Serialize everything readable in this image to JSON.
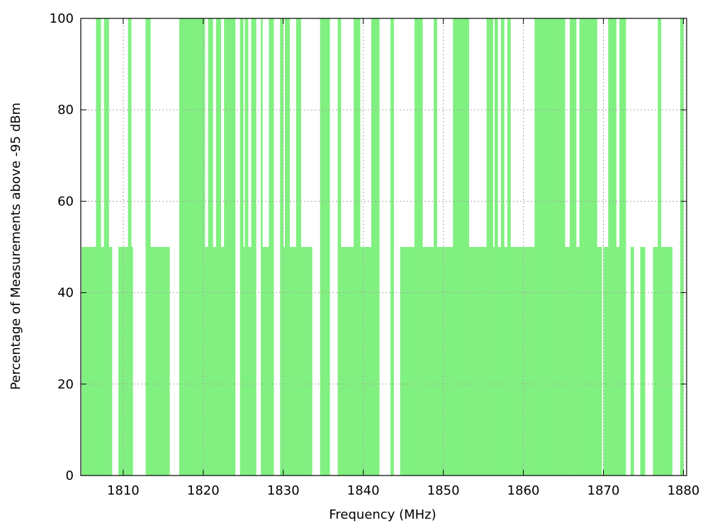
{
  "chart_data": {
    "type": "bar",
    "title": "",
    "xlabel": "Frequency (MHz)",
    "ylabel": "Percentage of Measurements above -95 dBm",
    "xlim": [
      1804.7,
      1880.4
    ],
    "ylim": [
      0,
      100
    ],
    "xticks": [
      1810,
      1820,
      1830,
      1840,
      1850,
      1860,
      1870,
      1880
    ],
    "yticks": [
      0,
      20,
      40,
      60,
      80,
      100
    ],
    "grid": true,
    "legend": "none",
    "bar_width_mhz": 0.2,
    "bar_color": "#80f080",
    "series": [
      {
        "values_at": [
          [
            1804.9,
            50
          ],
          [
            1805.1,
            50
          ],
          [
            1805.3,
            50
          ],
          [
            1805.5,
            50
          ],
          [
            1805.7,
            50
          ],
          [
            1805.9,
            50
          ],
          [
            1806.1,
            50
          ],
          [
            1806.3,
            50
          ],
          [
            1806.5,
            50
          ],
          [
            1806.7,
            100
          ],
          [
            1806.9,
            100
          ],
          [
            1807.1,
            100
          ],
          [
            1807.3,
            50
          ],
          [
            1807.5,
            50
          ],
          [
            1807.7,
            100
          ],
          [
            1807.9,
            100
          ],
          [
            1808.1,
            100
          ],
          [
            1808.3,
            50
          ],
          [
            1808.5,
            50
          ],
          [
            1809.5,
            50
          ],
          [
            1809.7,
            50
          ],
          [
            1809.9,
            50
          ],
          [
            1810.1,
            50
          ],
          [
            1810.3,
            50
          ],
          [
            1810.5,
            50
          ],
          [
            1810.7,
            100
          ],
          [
            1810.9,
            100
          ],
          [
            1811.1,
            50
          ],
          [
            1812.9,
            100
          ],
          [
            1813.1,
            100
          ],
          [
            1813.3,
            100
          ],
          [
            1813.5,
            50
          ],
          [
            1813.7,
            50
          ],
          [
            1813.9,
            50
          ],
          [
            1814.1,
            50
          ],
          [
            1814.3,
            50
          ],
          [
            1814.5,
            50
          ],
          [
            1814.7,
            50
          ],
          [
            1814.9,
            50
          ],
          [
            1815.1,
            50
          ],
          [
            1815.3,
            50
          ],
          [
            1815.5,
            50
          ],
          [
            1815.7,
            50
          ],
          [
            1817.1,
            100
          ],
          [
            1817.3,
            100
          ],
          [
            1817.5,
            100
          ],
          [
            1817.7,
            100
          ],
          [
            1817.9,
            100
          ],
          [
            1818.1,
            100
          ],
          [
            1818.3,
            100
          ],
          [
            1818.5,
            100
          ],
          [
            1818.7,
            100
          ],
          [
            1818.9,
            100
          ],
          [
            1819.1,
            100
          ],
          [
            1819.3,
            100
          ],
          [
            1819.5,
            100
          ],
          [
            1819.7,
            100
          ],
          [
            1819.9,
            100
          ],
          [
            1820.1,
            100
          ],
          [
            1820.3,
            50
          ],
          [
            1820.5,
            50
          ],
          [
            1820.7,
            100
          ],
          [
            1820.9,
            100
          ],
          [
            1821.1,
            100
          ],
          [
            1821.3,
            50
          ],
          [
            1821.5,
            50
          ],
          [
            1821.7,
            100
          ],
          [
            1821.9,
            100
          ],
          [
            1822.1,
            100
          ],
          [
            1822.3,
            50
          ],
          [
            1822.5,
            50
          ],
          [
            1822.7,
            100
          ],
          [
            1822.9,
            100
          ],
          [
            1823.1,
            100
          ],
          [
            1823.3,
            100
          ],
          [
            1823.5,
            100
          ],
          [
            1823.7,
            100
          ],
          [
            1823.9,
            100
          ],
          [
            1824.7,
            100
          ],
          [
            1824.9,
            100
          ],
          [
            1825.1,
            50
          ],
          [
            1825.3,
            100
          ],
          [
            1825.5,
            100
          ],
          [
            1825.7,
            50
          ],
          [
            1825.9,
            50
          ],
          [
            1826.1,
            100
          ],
          [
            1826.3,
            100
          ],
          [
            1826.5,
            100
          ],
          [
            1827.3,
            100
          ],
          [
            1827.5,
            50
          ],
          [
            1827.7,
            50
          ],
          [
            1827.9,
            50
          ],
          [
            1828.1,
            50
          ],
          [
            1828.3,
            100
          ],
          [
            1828.5,
            100
          ],
          [
            1828.7,
            100
          ],
          [
            1829.7,
            100
          ],
          [
            1829.9,
            100
          ],
          [
            1830.1,
            50
          ],
          [
            1830.3,
            100
          ],
          [
            1830.5,
            100
          ],
          [
            1830.7,
            100
          ],
          [
            1830.9,
            50
          ],
          [
            1831.1,
            50
          ],
          [
            1831.3,
            50
          ],
          [
            1831.5,
            50
          ],
          [
            1831.7,
            100
          ],
          [
            1831.9,
            100
          ],
          [
            1832.1,
            100
          ],
          [
            1832.3,
            50
          ],
          [
            1832.5,
            50
          ],
          [
            1832.7,
            50
          ],
          [
            1832.9,
            50
          ],
          [
            1833.1,
            50
          ],
          [
            1833.3,
            50
          ],
          [
            1833.5,
            50
          ],
          [
            1834.7,
            100
          ],
          [
            1834.9,
            100
          ],
          [
            1835.1,
            100
          ],
          [
            1835.3,
            100
          ],
          [
            1835.5,
            100
          ],
          [
            1835.7,
            100
          ],
          [
            1836.9,
            100
          ],
          [
            1837.1,
            100
          ],
          [
            1837.3,
            50
          ],
          [
            1837.5,
            50
          ],
          [
            1837.7,
            50
          ],
          [
            1837.9,
            50
          ],
          [
            1838.1,
            50
          ],
          [
            1838.3,
            50
          ],
          [
            1838.5,
            50
          ],
          [
            1838.7,
            50
          ],
          [
            1838.9,
            100
          ],
          [
            1839.1,
            100
          ],
          [
            1839.3,
            100
          ],
          [
            1839.5,
            100
          ],
          [
            1839.7,
            50
          ],
          [
            1839.9,
            50
          ],
          [
            1840.1,
            50
          ],
          [
            1840.3,
            50
          ],
          [
            1840.5,
            50
          ],
          [
            1840.7,
            50
          ],
          [
            1840.9,
            50
          ],
          [
            1841.1,
            100
          ],
          [
            1841.3,
            100
          ],
          [
            1841.5,
            100
          ],
          [
            1841.7,
            100
          ],
          [
            1841.9,
            100
          ],
          [
            1843.5,
            100
          ],
          [
            1843.7,
            100
          ],
          [
            1844.7,
            50
          ],
          [
            1844.9,
            50
          ],
          [
            1845.1,
            50
          ],
          [
            1845.3,
            50
          ],
          [
            1845.5,
            50
          ],
          [
            1845.7,
            50
          ],
          [
            1845.9,
            50
          ],
          [
            1846.1,
            50
          ],
          [
            1846.3,
            50
          ],
          [
            1846.5,
            100
          ],
          [
            1846.7,
            100
          ],
          [
            1846.9,
            100
          ],
          [
            1847.1,
            100
          ],
          [
            1847.3,
            100
          ],
          [
            1847.5,
            50
          ],
          [
            1847.7,
            50
          ],
          [
            1847.9,
            50
          ],
          [
            1848.1,
            50
          ],
          [
            1848.3,
            50
          ],
          [
            1848.5,
            50
          ],
          [
            1848.7,
            50
          ],
          [
            1848.9,
            100
          ],
          [
            1849.1,
            100
          ],
          [
            1849.3,
            50
          ],
          [
            1849.5,
            50
          ],
          [
            1849.7,
            50
          ],
          [
            1849.9,
            50
          ],
          [
            1850.1,
            50
          ],
          [
            1850.3,
            50
          ],
          [
            1850.5,
            50
          ],
          [
            1850.7,
            50
          ],
          [
            1850.9,
            50
          ],
          [
            1851.1,
            50
          ],
          [
            1851.3,
            100
          ],
          [
            1851.5,
            100
          ],
          [
            1851.7,
            100
          ],
          [
            1851.9,
            100
          ],
          [
            1852.1,
            100
          ],
          [
            1852.3,
            100
          ],
          [
            1852.5,
            100
          ],
          [
            1852.7,
            100
          ],
          [
            1852.9,
            100
          ],
          [
            1853.1,
            100
          ],
          [
            1853.3,
            50
          ],
          [
            1853.5,
            50
          ],
          [
            1853.7,
            50
          ],
          [
            1853.9,
            50
          ],
          [
            1854.1,
            50
          ],
          [
            1854.3,
            50
          ],
          [
            1854.5,
            50
          ],
          [
            1854.7,
            50
          ],
          [
            1854.9,
            50
          ],
          [
            1855.1,
            50
          ],
          [
            1855.3,
            50
          ],
          [
            1855.5,
            100
          ],
          [
            1855.7,
            100
          ],
          [
            1855.9,
            100
          ],
          [
            1856.1,
            100
          ],
          [
            1856.3,
            50
          ],
          [
            1856.5,
            100
          ],
          [
            1856.7,
            100
          ],
          [
            1856.9,
            50
          ],
          [
            1857.1,
            50
          ],
          [
            1857.3,
            100
          ],
          [
            1857.5,
            100
          ],
          [
            1857.7,
            50
          ],
          [
            1857.9,
            50
          ],
          [
            1858.1,
            100
          ],
          [
            1858.3,
            100
          ],
          [
            1858.5,
            50
          ],
          [
            1858.7,
            50
          ],
          [
            1858.9,
            50
          ],
          [
            1859.1,
            50
          ],
          [
            1859.3,
            50
          ],
          [
            1859.5,
            50
          ],
          [
            1859.7,
            50
          ],
          [
            1859.9,
            50
          ],
          [
            1860.1,
            50
          ],
          [
            1860.3,
            50
          ],
          [
            1860.5,
            50
          ],
          [
            1860.7,
            50
          ],
          [
            1860.9,
            50
          ],
          [
            1861.1,
            50
          ],
          [
            1861.3,
            50
          ],
          [
            1861.5,
            100
          ],
          [
            1861.7,
            100
          ],
          [
            1861.9,
            100
          ],
          [
            1862.1,
            100
          ],
          [
            1862.3,
            100
          ],
          [
            1862.5,
            100
          ],
          [
            1862.7,
            100
          ],
          [
            1862.9,
            100
          ],
          [
            1863.1,
            100
          ],
          [
            1863.3,
            100
          ],
          [
            1863.5,
            100
          ],
          [
            1863.7,
            100
          ],
          [
            1863.9,
            100
          ],
          [
            1864.1,
            100
          ],
          [
            1864.3,
            100
          ],
          [
            1864.5,
            100
          ],
          [
            1864.7,
            100
          ],
          [
            1864.9,
            100
          ],
          [
            1865.1,
            100
          ],
          [
            1865.3,
            50
          ],
          [
            1865.5,
            50
          ],
          [
            1865.7,
            50
          ],
          [
            1865.9,
            100
          ],
          [
            1866.1,
            100
          ],
          [
            1866.3,
            100
          ],
          [
            1866.5,
            100
          ],
          [
            1866.7,
            50
          ],
          [
            1866.9,
            50
          ],
          [
            1867.1,
            100
          ],
          [
            1867.3,
            100
          ],
          [
            1867.5,
            100
          ],
          [
            1867.7,
            100
          ],
          [
            1867.9,
            100
          ],
          [
            1868.1,
            100
          ],
          [
            1868.3,
            100
          ],
          [
            1868.5,
            100
          ],
          [
            1868.7,
            100
          ],
          [
            1868.9,
            100
          ],
          [
            1869.1,
            100
          ],
          [
            1869.3,
            50
          ],
          [
            1869.5,
            50
          ],
          [
            1869.7,
            50
          ],
          [
            1870.1,
            50
          ],
          [
            1870.3,
            50
          ],
          [
            1870.5,
            50
          ],
          [
            1870.7,
            100
          ],
          [
            1870.9,
            100
          ],
          [
            1871.1,
            100
          ],
          [
            1871.3,
            100
          ],
          [
            1871.5,
            100
          ],
          [
            1871.7,
            50
          ],
          [
            1871.9,
            50
          ],
          [
            1872.1,
            100
          ],
          [
            1872.3,
            100
          ],
          [
            1872.5,
            100
          ],
          [
            1872.7,
            100
          ],
          [
            1873.5,
            50
          ],
          [
            1873.7,
            50
          ],
          [
            1874.7,
            50
          ],
          [
            1874.9,
            50
          ],
          [
            1875.1,
            50
          ],
          [
            1876.3,
            50
          ],
          [
            1876.5,
            50
          ],
          [
            1876.7,
            50
          ],
          [
            1876.9,
            100
          ],
          [
            1877.1,
            100
          ],
          [
            1877.3,
            50
          ],
          [
            1877.5,
            50
          ],
          [
            1877.7,
            50
          ],
          [
            1877.9,
            50
          ],
          [
            1878.1,
            50
          ],
          [
            1878.3,
            50
          ],
          [
            1878.5,
            50
          ],
          [
            1879.7,
            100
          ],
          [
            1879.9,
            100
          ]
        ]
      }
    ]
  }
}
